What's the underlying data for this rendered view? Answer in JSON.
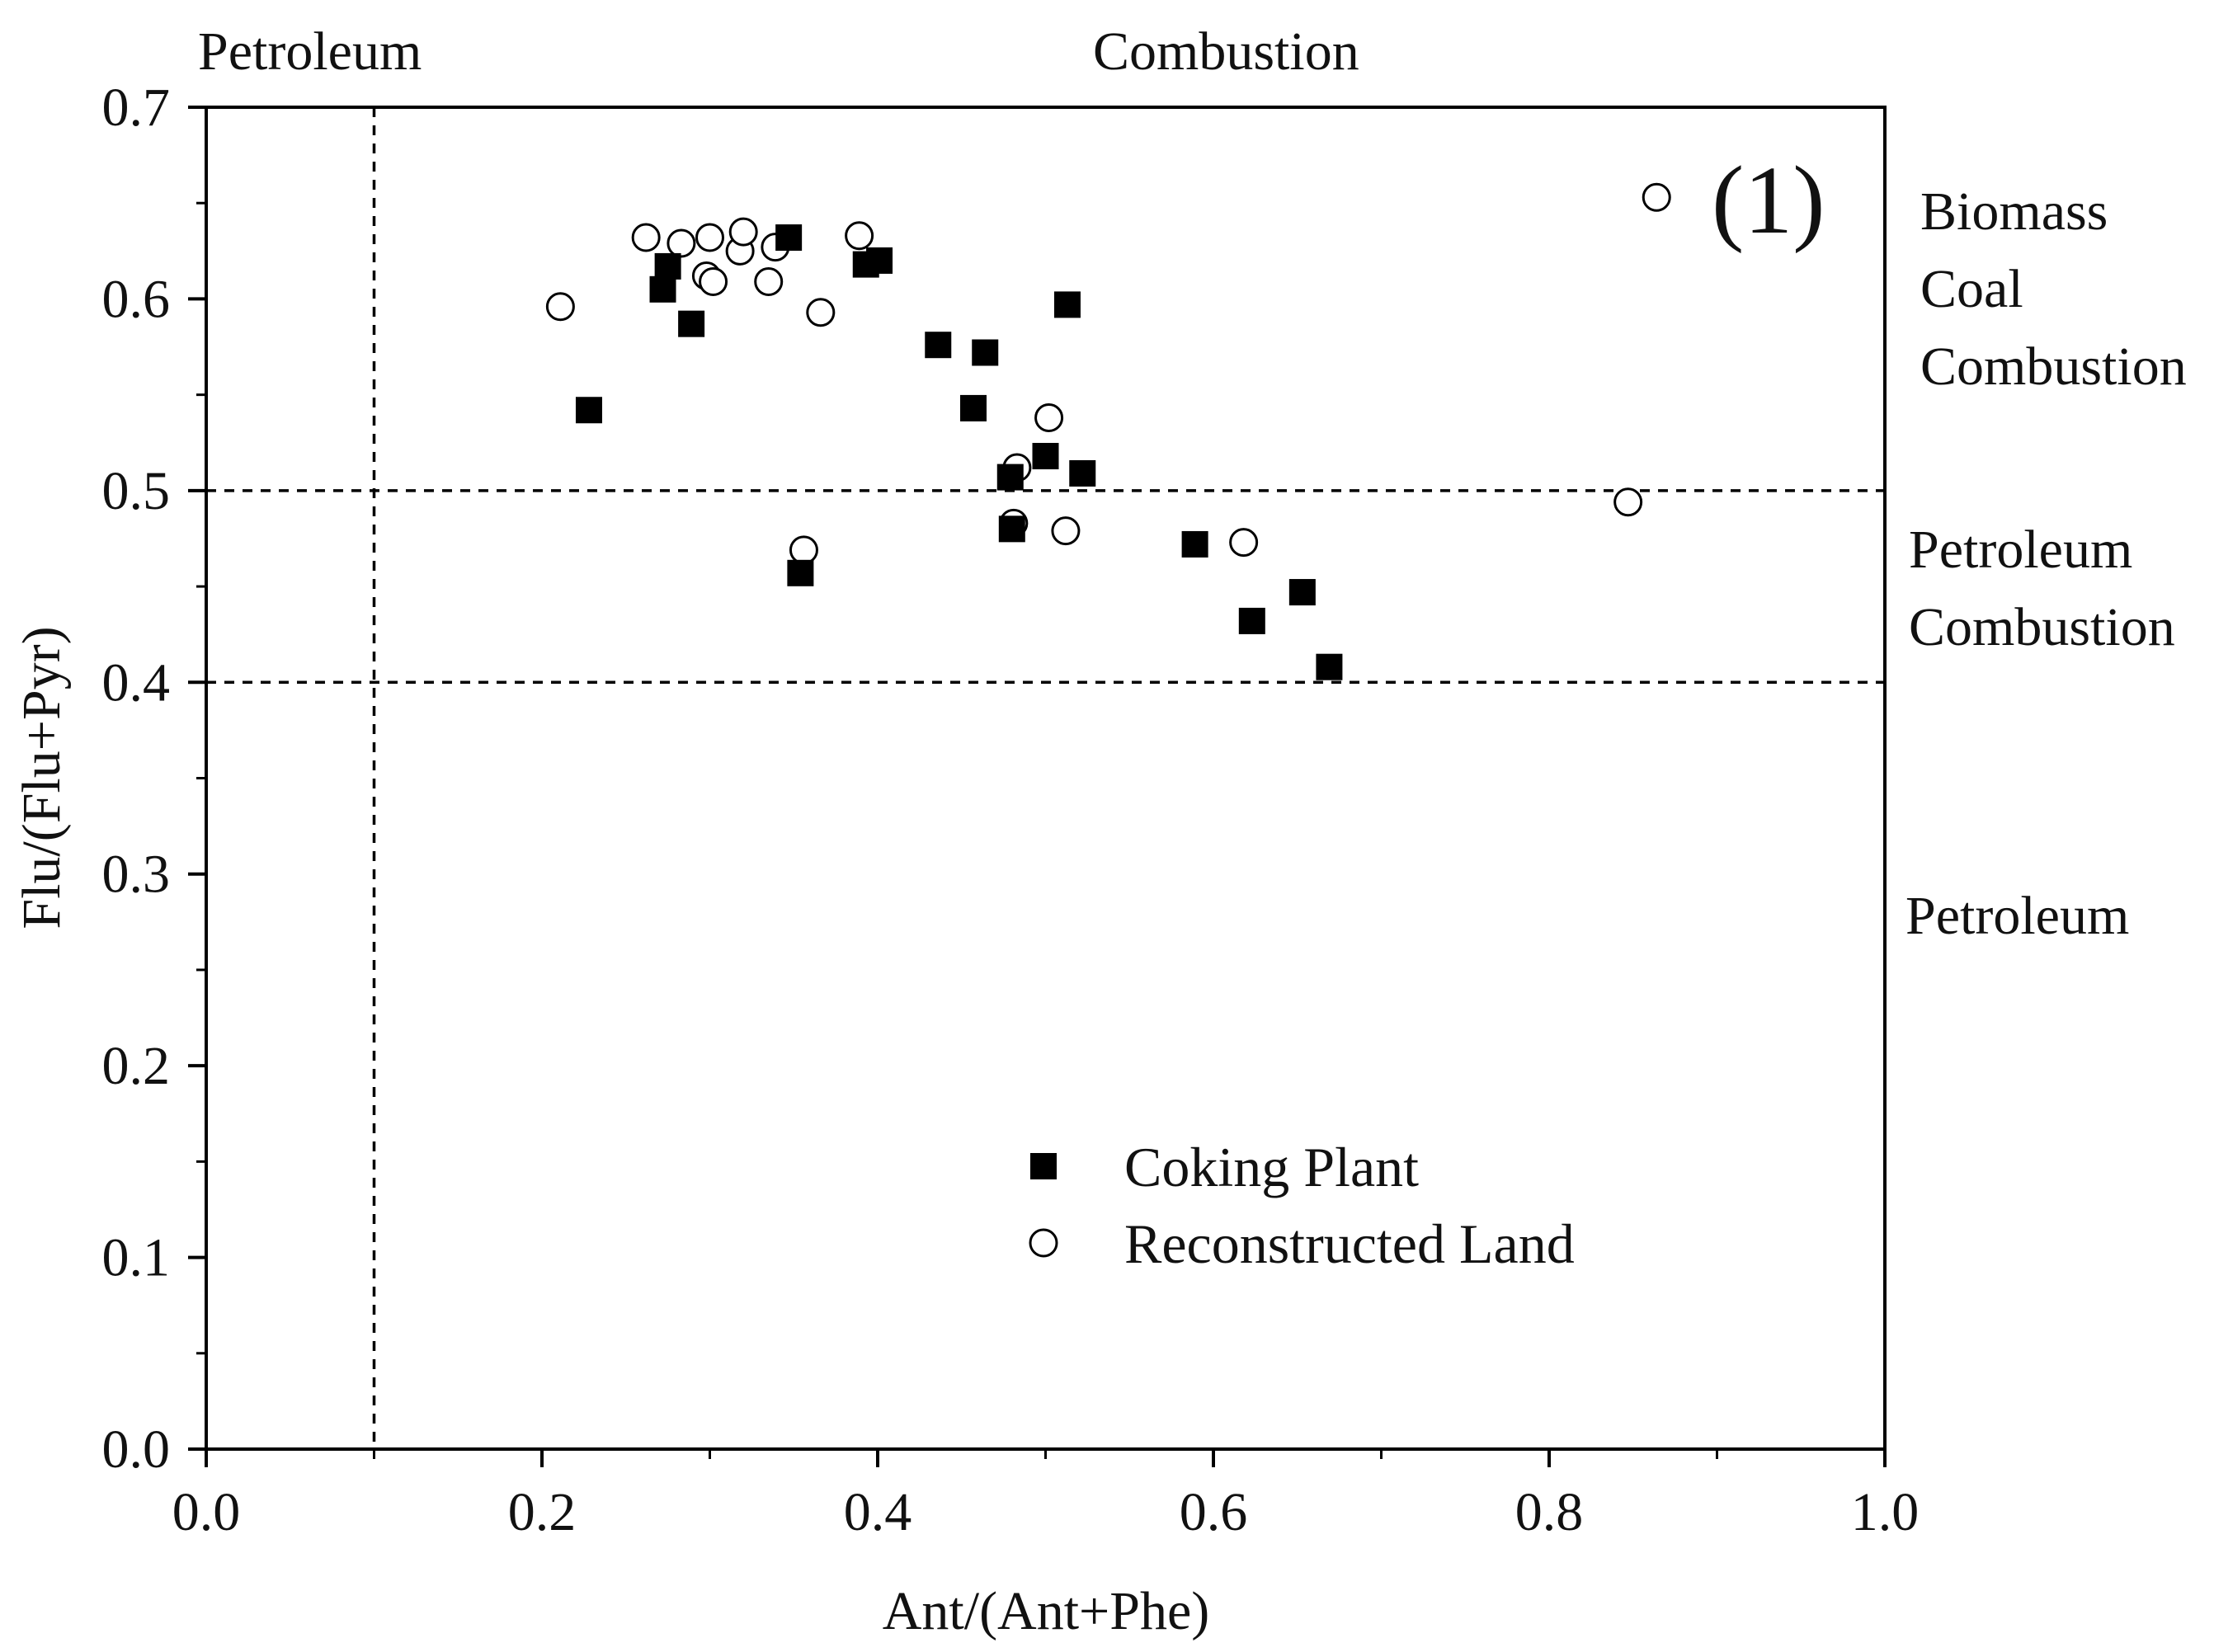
{
  "chart_data": {
    "type": "scatter",
    "title": "",
    "panel_label": "(1)",
    "xlabel": "Ant/(Ant+Phe)",
    "ylabel": "Flu/(Flu+Pyr)",
    "xlim": [
      0.0,
      1.0
    ],
    "ylim": [
      0.0,
      0.7
    ],
    "x_ticks": [
      0.0,
      0.2,
      0.4,
      0.6,
      0.8,
      1.0
    ],
    "x_tick_labels": [
      "0.0",
      "0.2",
      "0.4",
      "0.6",
      "0.8",
      "1.0"
    ],
    "y_ticks": [
      0.0,
      0.1,
      0.2,
      0.3,
      0.4,
      0.5,
      0.6,
      0.7
    ],
    "y_tick_labels": [
      "0.0",
      "0.1",
      "0.2",
      "0.3",
      "0.4",
      "0.5",
      "0.6",
      "0.7"
    ],
    "grid": false,
    "legend_position": "bottom-center",
    "threshold_lines": {
      "vertical_x": [
        0.1
      ],
      "horizontal_y": [
        0.4,
        0.5
      ]
    },
    "region_labels": {
      "top_left": "Petroleum",
      "top_center": "Combustion",
      "right_upper": [
        "Biomass",
        "Coal",
        "Combustion"
      ],
      "right_middle": [
        "Petroleum",
        "Combustion"
      ],
      "right_lower": "Petroleum"
    },
    "series": [
      {
        "name": "Coking Plant",
        "marker": "filled-square",
        "color": "#000000",
        "points": [
          {
            "x": 0.228,
            "y": 0.542
          },
          {
            "x": 0.272,
            "y": 0.605
          },
          {
            "x": 0.275,
            "y": 0.617
          },
          {
            "x": 0.289,
            "y": 0.587
          },
          {
            "x": 0.347,
            "y": 0.632
          },
          {
            "x": 0.354,
            "y": 0.457
          },
          {
            "x": 0.393,
            "y": 0.618
          },
          {
            "x": 0.401,
            "y": 0.62
          },
          {
            "x": 0.436,
            "y": 0.576
          },
          {
            "x": 0.457,
            "y": 0.543
          },
          {
            "x": 0.464,
            "y": 0.572
          },
          {
            "x": 0.479,
            "y": 0.507
          },
          {
            "x": 0.48,
            "y": 0.48
          },
          {
            "x": 0.5,
            "y": 0.518
          },
          {
            "x": 0.513,
            "y": 0.597
          },
          {
            "x": 0.522,
            "y": 0.509
          },
          {
            "x": 0.589,
            "y": 0.472
          },
          {
            "x": 0.623,
            "y": 0.432
          },
          {
            "x": 0.653,
            "y": 0.447
          },
          {
            "x": 0.669,
            "y": 0.408
          }
        ]
      },
      {
        "name": "Reconstructed Land",
        "marker": "open-circle",
        "color": "#000000",
        "points": [
          {
            "x": 0.211,
            "y": 0.596
          },
          {
            "x": 0.262,
            "y": 0.632
          },
          {
            "x": 0.283,
            "y": 0.629
          },
          {
            "x": 0.298,
            "y": 0.612
          },
          {
            "x": 0.3,
            "y": 0.632
          },
          {
            "x": 0.302,
            "y": 0.609
          },
          {
            "x": 0.318,
            "y": 0.625
          },
          {
            "x": 0.32,
            "y": 0.635
          },
          {
            "x": 0.335,
            "y": 0.609
          },
          {
            "x": 0.339,
            "y": 0.627
          },
          {
            "x": 0.356,
            "y": 0.469
          },
          {
            "x": 0.366,
            "y": 0.593
          },
          {
            "x": 0.389,
            "y": 0.633
          },
          {
            "x": 0.481,
            "y": 0.483
          },
          {
            "x": 0.483,
            "y": 0.512
          },
          {
            "x": 0.502,
            "y": 0.538
          },
          {
            "x": 0.512,
            "y": 0.479
          },
          {
            "x": 0.618,
            "y": 0.473
          },
          {
            "x": 0.847,
            "y": 0.494
          },
          {
            "x": 0.864,
            "y": 0.653
          }
        ]
      }
    ]
  }
}
